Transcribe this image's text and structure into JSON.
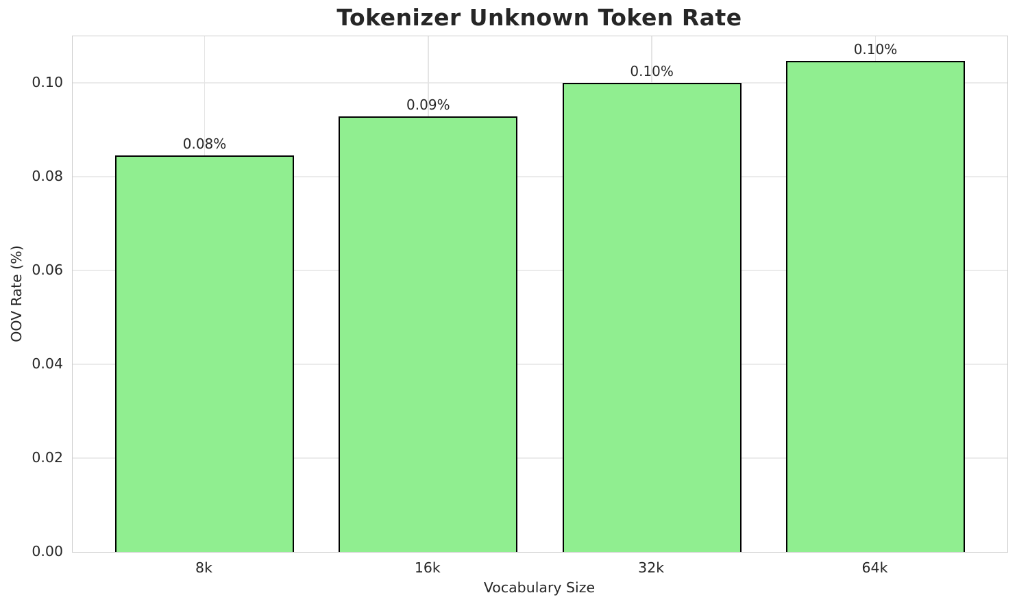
{
  "chart_data": {
    "type": "bar",
    "title": "Tokenizer Unknown Token Rate",
    "xlabel": "Vocabulary Size",
    "ylabel": "OOV Rate (%)",
    "categories": [
      "8k",
      "16k",
      "32k",
      "64k"
    ],
    "values": [
      0.0845,
      0.0928,
      0.1,
      0.1047
    ],
    "bar_labels": [
      "0.08%",
      "0.09%",
      "0.10%",
      "0.10%"
    ],
    "yticks": [
      "0.00",
      "0.02",
      "0.04",
      "0.06",
      "0.08",
      "0.10"
    ],
    "ylim": [
      0,
      0.1099
    ],
    "grid": true,
    "legend": "none",
    "colors": {
      "bar_fill": "#90EE90",
      "bar_edge": "#000000",
      "grid": "#ebebeb",
      "spine": "#cccccc",
      "text": "#262626"
    }
  }
}
